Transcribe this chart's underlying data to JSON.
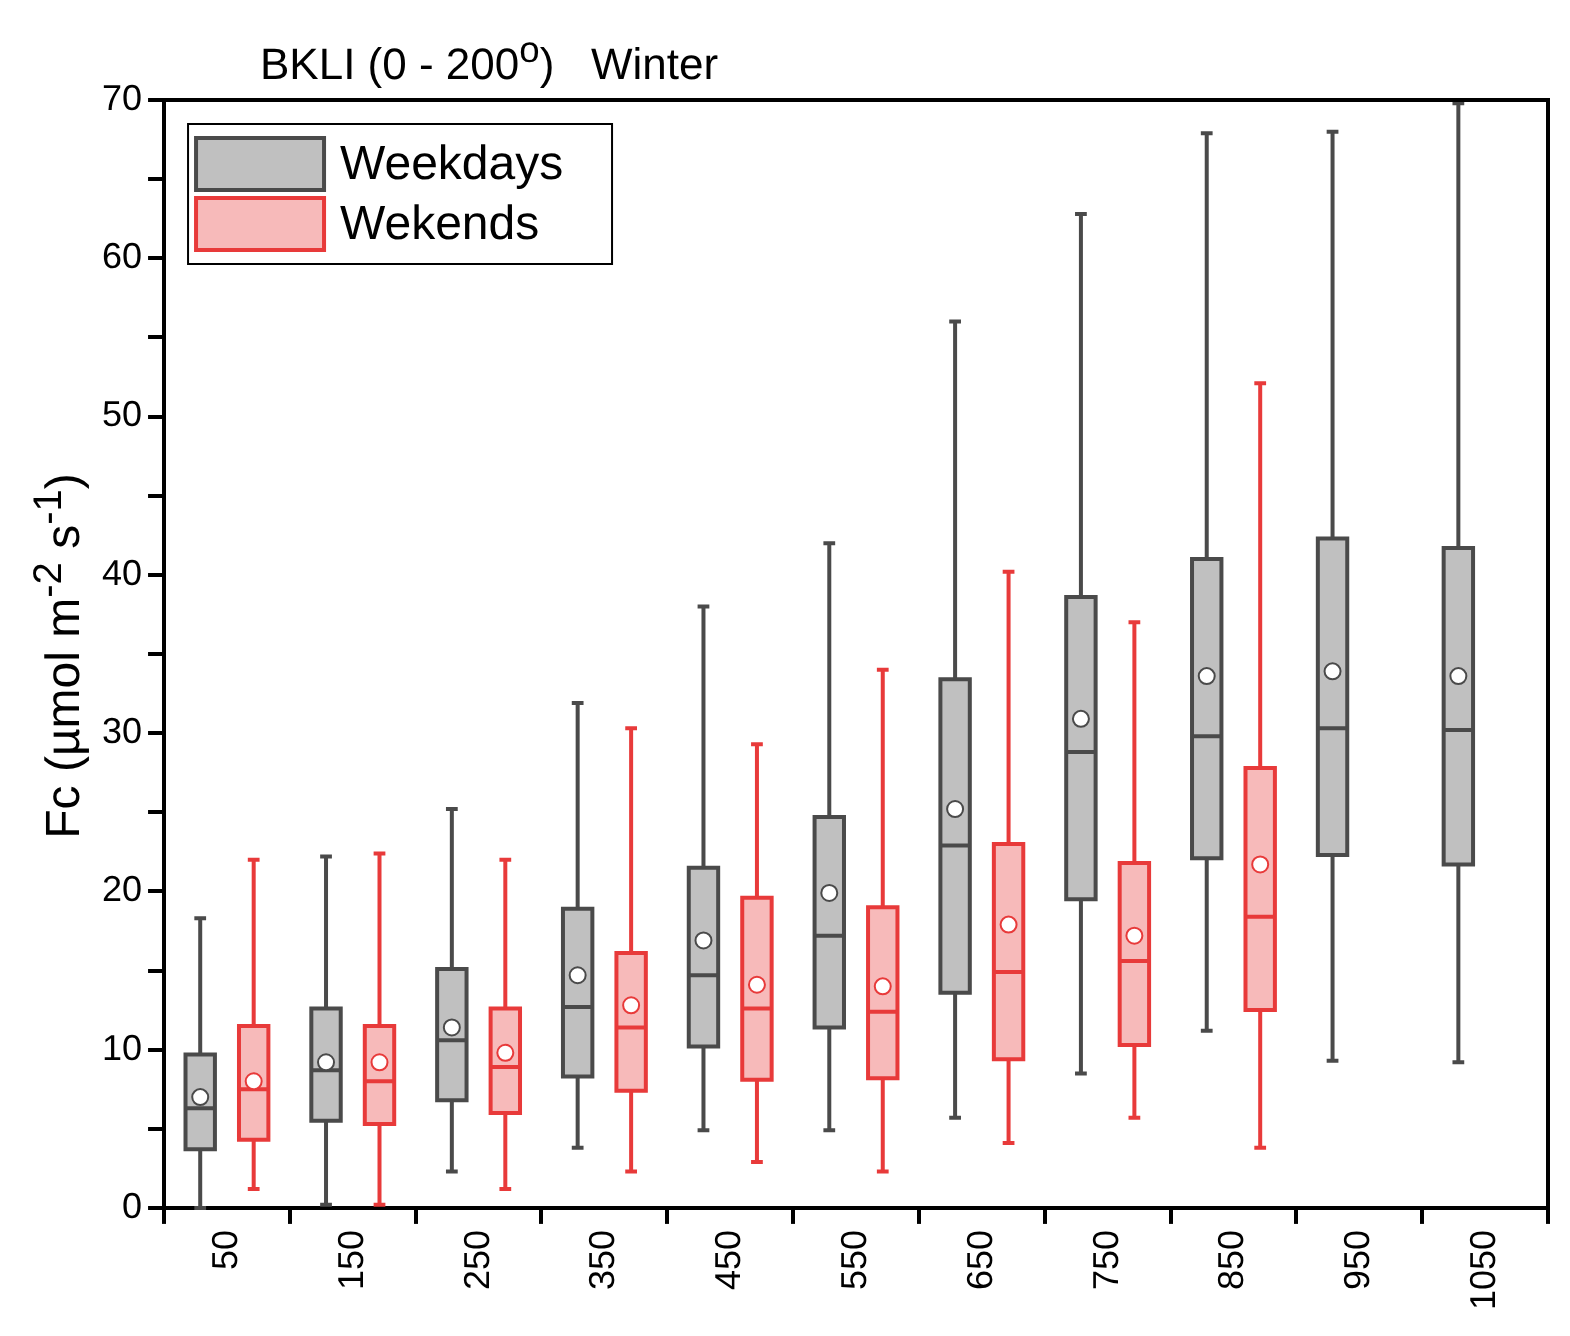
{
  "chart_data": {
    "type": "box",
    "title": "BKLI (0 - 200$^{o}$)   Winter",
    "ylabel": "Fc (µmol m$^{-2}$ s$^{-1}$)",
    "categories": [
      "50",
      "150",
      "250",
      "350",
      "450",
      "550",
      "650",
      "750",
      "850",
      "950",
      "1050"
    ],
    "ylim": [
      0,
      70
    ],
    "yticks": [
      0,
      {
        "value": 5,
        "label": null
      },
      10,
      {
        "value": 15,
        "label": null
      },
      20,
      {
        "value": 25,
        "label": null
      },
      30,
      {
        "value": 35,
        "label": null
      },
      40,
      {
        "value": 45,
        "label": null
      },
      50,
      {
        "value": 55,
        "label": null
      },
      60,
      {
        "value": 65,
        "label": null
      },
      70
    ],
    "grid": false,
    "legend": "top left",
    "marker": "circle",
    "series": [
      {
        "name": "Weekdays",
        "color": "#4a4a4a",
        "boxes": [
          {
            "low": 0,
            "q1": 3.7,
            "median": 6.3,
            "q3": 9.7,
            "high": 18.3,
            "mean": 7.0
          },
          {
            "low": 0.2,
            "q1": 5.5,
            "median": 8.7,
            "q3": 12.6,
            "high": 22.2,
            "mean": 9.2
          },
          {
            "low": 2.3,
            "q1": 6.8,
            "median": 10.6,
            "q3": 15.1,
            "high": 25.2,
            "mean": 11.4
          },
          {
            "low": 3.8,
            "q1": 8.3,
            "median": 12.7,
            "q3": 18.9,
            "high": 31.9,
            "mean": 14.7
          },
          {
            "low": 4.9,
            "q1": 10.2,
            "median": 14.7,
            "q3": 21.5,
            "high": 38.0,
            "mean": 16.9
          },
          {
            "low": 4.9,
            "q1": 11.4,
            "median": 17.2,
            "q3": 24.7,
            "high": 42.0,
            "mean": 19.9
          },
          {
            "low": 5.7,
            "q1": 13.6,
            "median": 22.9,
            "q3": 33.4,
            "high": 56.0,
            "mean": 25.2
          },
          {
            "low": 8.5,
            "q1": 19.5,
            "median": 28.8,
            "q3": 38.6,
            "high": 62.8,
            "mean": 30.9
          },
          {
            "low": 11.2,
            "q1": 22.1,
            "median": 29.8,
            "q3": 41.0,
            "high": 67.9,
            "mean": 33.6
          },
          {
            "low": 9.3,
            "q1": 22.3,
            "median": 30.3,
            "q3": 42.3,
            "high": 68.0,
            "mean": 33.9
          },
          {
            "low": 9.2,
            "q1": 21.7,
            "median": 30.2,
            "q3": 41.7,
            "high": 69.8,
            "mean": 33.6
          }
        ]
      },
      {
        "name": "Wekends",
        "color": "#e83a3a",
        "boxes": [
          {
            "low": 1.2,
            "q1": 4.3,
            "median": 7.5,
            "q3": 11.5,
            "high": 22.0,
            "mean": 8.0
          },
          {
            "low": 0.2,
            "q1": 5.3,
            "median": 8.0,
            "q3": 11.5,
            "high": 22.4,
            "mean": 9.2
          },
          {
            "low": 1.2,
            "q1": 6.0,
            "median": 8.9,
            "q3": 12.6,
            "high": 22.0,
            "mean": 9.8
          },
          {
            "low": 2.3,
            "q1": 7.4,
            "median": 11.4,
            "q3": 16.1,
            "high": 30.3,
            "mean": 12.8
          },
          {
            "low": 2.9,
            "q1": 8.1,
            "median": 12.6,
            "q3": 19.6,
            "high": 29.3,
            "mean": 14.1
          },
          {
            "low": 2.3,
            "q1": 8.2,
            "median": 12.4,
            "q3": 19.0,
            "high": 34.0,
            "mean": 14.0
          },
          {
            "low": 4.1,
            "q1": 9.4,
            "median": 14.9,
            "q3": 23.0,
            "high": 40.2,
            "mean": 17.9
          },
          {
            "low": 5.7,
            "q1": 10.3,
            "median": 15.6,
            "q3": 21.8,
            "high": 37.0,
            "mean": 17.2
          },
          {
            "low": 3.8,
            "q1": 12.5,
            "median": 18.4,
            "q3": 27.8,
            "high": 52.1,
            "mean": 21.7
          },
          null,
          null
        ]
      }
    ]
  }
}
